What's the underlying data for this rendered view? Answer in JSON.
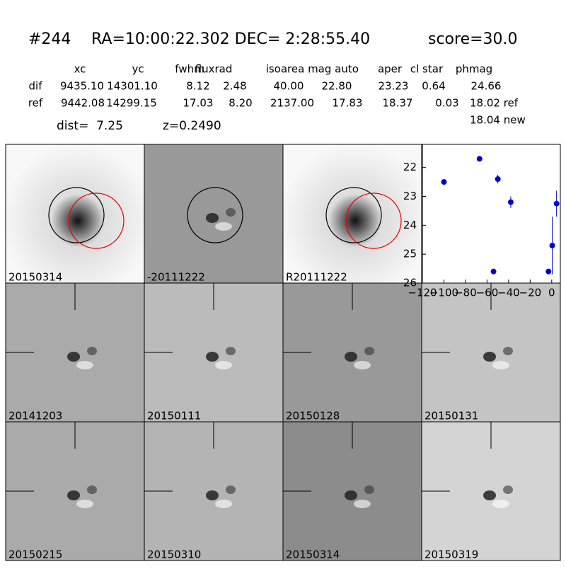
{
  "header": {
    "id": "#244",
    "coords": "RA=10:00:22.302 DEC= 2:28:55.40",
    "score": "score=30.0"
  },
  "table": {
    "columns": [
      "xc",
      "yc",
      "fwhm",
      "fluxrad",
      "isoarea",
      "mag auto",
      "aper",
      "cl star",
      "phmag"
    ],
    "rows": [
      [
        "dif",
        "9435.10",
        "14301.10",
        "8.12",
        "2.48",
        "40.00",
        "22.80",
        "23.23",
        "0.64",
        "24.66"
      ],
      [
        "ref",
        "9442.08",
        "14299.15",
        "17.03",
        "8.20",
        "2137.00",
        "17.83",
        "18.37",
        "0.03",
        "18.02 ref"
      ]
    ],
    "extra": "18.04 new"
  },
  "info": {
    "dist": "dist=  7.25",
    "z": "z=0.2490"
  },
  "stamps": [
    "20150314",
    "-20111222",
    "R20111222",
    "20141203",
    "20150111",
    "20150128",
    "20150131",
    "20150215",
    "20150310",
    "20150314",
    "20150319"
  ],
  "chart_data": {
    "type": "scatter",
    "color": "#0000cc",
    "x": [
      -100,
      -67,
      -54,
      -50,
      -38,
      -3,
      0.5,
      4.5
    ],
    "values": [
      22.5,
      21.7,
      25.6,
      22.4,
      23.2,
      25.6,
      24.7,
      23.25
    ],
    "errors": [
      0.1,
      0.03,
      0.05,
      0.15,
      0.2,
      0.05,
      1.0,
      0.45
    ],
    "xlim": [
      -120,
      8
    ],
    "ylim": [
      26,
      21.2
    ],
    "xticks": [
      {
        "value": -120,
        "label": "−120"
      },
      {
        "value": -100,
        "label": "−100"
      },
      {
        "value": -80,
        "label": "−80"
      },
      {
        "value": -60,
        "label": "−60"
      },
      {
        "value": -40,
        "label": "−40"
      },
      {
        "value": -20,
        "label": "−20"
      },
      0
    ],
    "yticks": [
      22,
      23,
      24,
      25,
      26
    ]
  }
}
